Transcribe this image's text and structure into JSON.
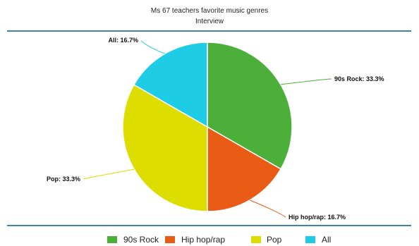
{
  "chart_data": {
    "type": "pie",
    "title": "Ms 67 teachers favorite music genres",
    "subtitle": "Interview",
    "slices": [
      {
        "name": "90s Rock",
        "value": 33.3,
        "label": "90s Rock: 33.3%",
        "color": "#4caf3a"
      },
      {
        "name": "Hip hop/rap",
        "value": 16.7,
        "label": "Hip hop/rap: 16.7%",
        "color": "#ea5b16"
      },
      {
        "name": "Pop",
        "value": 33.3,
        "label": "Pop: 33.3%",
        "color": "#dddd00"
      },
      {
        "name": "All",
        "value": 16.7,
        "label": "All: 16.7%",
        "color": "#1fcce6"
      }
    ],
    "legend_position": "bottom",
    "rule_color": "#3f7fb5"
  }
}
